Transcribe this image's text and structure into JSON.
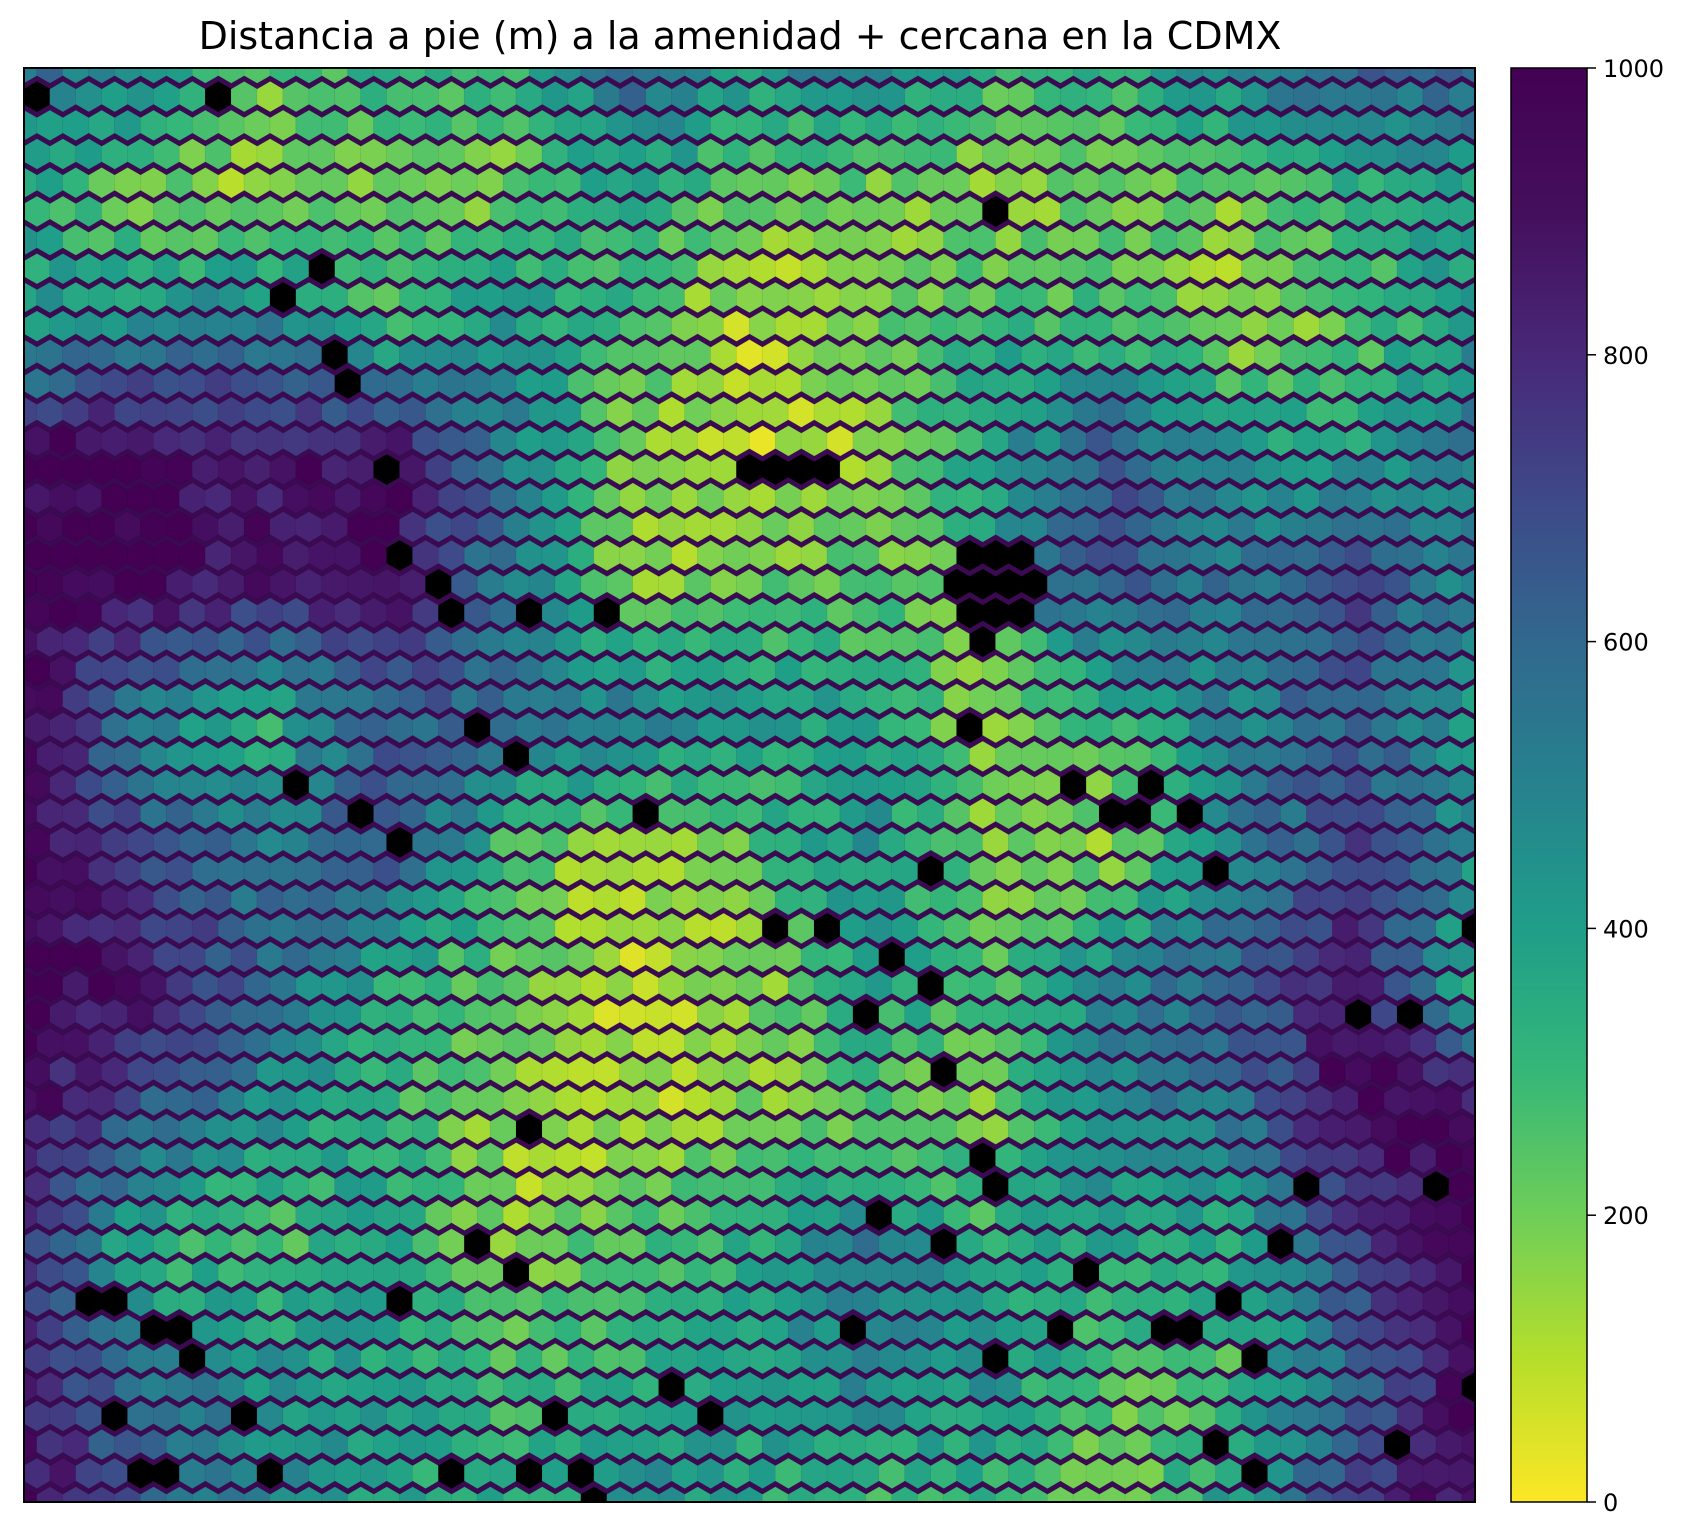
{
  "chart_data": {
    "type": "heatmap",
    "subtype": "hexbin",
    "title": "Distancia a pie (m) a la amenidad + cercana en la CDMX",
    "xlabel": "",
    "ylabel": "",
    "axes_ticks_visible": false,
    "grid": false,
    "colormap": "viridis_r",
    "colorbar": {
      "position": "right",
      "range": [
        0,
        1000
      ],
      "ticks": [
        0,
        200,
        400,
        600,
        800,
        1000
      ],
      "tick_labels": [
        "0",
        "200",
        "400",
        "600",
        "800",
        "1000"
      ]
    },
    "missing_color": "#000000",
    "hex_grid": {
      "columns": 57,
      "rows": 51
    },
    "value_field_description": "approximate distance estimated on a coarse grid of anchor points (rows top to bottom, columns left to right, fractions of plotted area)",
    "anchor_grid": {
      "rows": 12,
      "cols": 13,
      "values": [
        [
          650,
          500,
          250,
          350,
          300,
          700,
          450,
          600,
          300,
          350,
          550,
          700,
          650
        ],
        [
          400,
          200,
          150,
          250,
          200,
          400,
          200,
          200,
          150,
          250,
          200,
          350,
          450
        ],
        [
          450,
          550,
          600,
          300,
          500,
          300,
          100,
          200,
          350,
          300,
          150,
          250,
          500
        ],
        [
          1000,
          1000,
          950,
          1000,
          600,
          200,
          100,
          150,
          450,
          750,
          500,
          450,
          600
        ],
        [
          1000,
          1000,
          900,
          950,
          600,
          150,
          250,
          250,
          null,
          700,
          600,
          800,
          500
        ],
        [
          1000,
          550,
          350,
          700,
          650,
          600,
          450,
          450,
          150,
          350,
          550,
          700,
          450
        ],
        [
          1000,
          750,
          600,
          750,
          300,
          100,
          250,
          500,
          200,
          150,
          550,
          800,
          500
        ],
        [
          1000,
          950,
          650,
          400,
          250,
          100,
          150,
          450,
          300,
          550,
          700,
          950,
          350
        ],
        [
          1000,
          700,
          500,
          350,
          150,
          100,
          200,
          250,
          200,
          550,
          600,
          1000,
          1000
        ],
        [
          850,
          350,
          250,
          450,
          150,
          300,
          350,
          600,
          350,
          450,
          400,
          800,
          1000
        ],
        [
          900,
          600,
          500,
          400,
          300,
          350,
          450,
          550,
          500,
          250,
          300,
          650,
          1000
        ],
        [
          1000,
          700,
          500,
          450,
          350,
          550,
          400,
          300,
          350,
          200,
          450,
          800,
          1000
        ]
      ]
    },
    "nodata_cells_approx": [
      [
        1,
        0.01
      ],
      [
        8,
        0.01
      ],
      [
        10,
        0.16
      ],
      [
        12,
        0.2
      ],
      [
        13,
        0.22
      ],
      [
        14,
        0.28
      ],
      [
        20,
        0.37
      ],
      [
        23,
        0.38
      ],
      [
        11,
        0.5
      ],
      [
        13,
        0.51
      ],
      [
        5,
        0.87
      ],
      [
        6,
        0.87
      ],
      [
        7,
        0.9
      ],
      [
        9,
        0.93
      ],
      [
        4,
        0.94
      ],
      [
        5,
        0.97
      ],
      [
        6,
        0.98
      ],
      [
        10,
        0.98
      ],
      [
        20,
        0.98
      ],
      [
        22,
        0.97
      ],
      [
        15,
        0.34
      ],
      [
        16,
        0.35
      ],
      [
        17,
        0.38
      ],
      [
        3,
        0.86
      ],
      [
        4,
        0.86
      ],
      [
        28,
        0.28
      ],
      [
        29,
        0.27
      ],
      [
        30,
        0.29
      ],
      [
        31,
        0.29
      ],
      [
        38,
        0.09
      ],
      [
        18,
        0.45
      ],
      [
        19,
        0.47
      ],
      [
        24,
        0.51
      ],
      [
        35,
        0.55
      ],
      [
        37,
        0.46
      ],
      [
        41,
        0.5
      ],
      [
        42,
        0.52
      ],
      [
        43,
        0.52
      ],
      [
        44,
        0.5
      ],
      [
        45,
        0.52
      ],
      [
        46,
        0.57
      ],
      [
        29,
        0.59
      ],
      [
        31,
        0.59
      ],
      [
        34,
        0.62
      ],
      [
        35,
        0.63
      ],
      [
        36,
        0.69
      ],
      [
        37,
        0.75
      ],
      [
        38,
        0.77
      ],
      [
        33,
        0.79
      ],
      [
        36,
        0.82
      ],
      [
        41,
        0.84
      ],
      [
        40,
        0.87
      ],
      [
        44,
        0.87
      ],
      [
        45,
        0.87
      ],
      [
        47,
        0.86
      ],
      [
        21,
        0.94
      ],
      [
        22,
        0.99
      ],
      [
        25,
        0.92
      ],
      [
        27,
        0.93
      ],
      [
        32,
        0.87
      ],
      [
        38,
        0.9
      ],
      [
        46,
        0.95
      ],
      [
        48,
        0.9
      ],
      [
        50,
        0.77
      ],
      [
        52,
        0.65
      ],
      [
        54,
        0.65
      ],
      [
        56,
        0.6
      ],
      [
        55,
        0.78
      ],
      [
        56,
        0.92
      ],
      [
        53,
        0.95
      ],
      [
        49,
        0.82
      ],
      [
        48,
        0.98
      ],
      [
        19,
        0.84
      ],
      [
        18,
        0.82
      ],
      [
        15,
        0.54
      ],
      [
        15,
        0.85
      ],
      [
        17,
        0.97
      ],
      [
        20,
        0.73
      ],
      [
        33,
        0.65
      ],
      [
        12,
        0.13
      ]
    ]
  }
}
